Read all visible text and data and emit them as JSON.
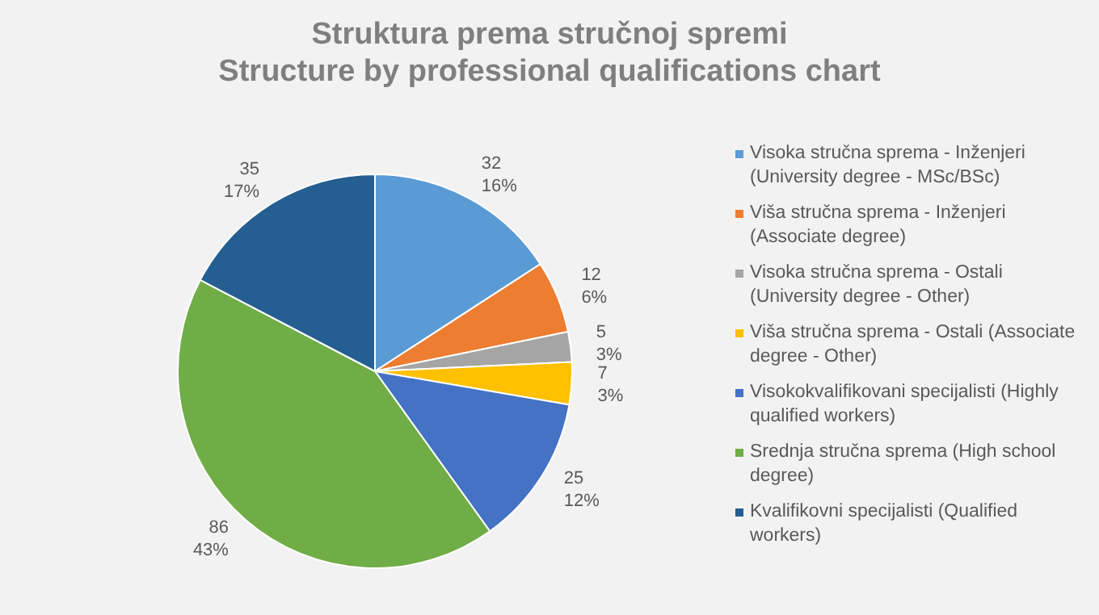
{
  "chart_data": {
    "type": "pie",
    "title": "Struktura prema stručnoj spremi",
    "subtitle": "Structure by professional qualifications chart",
    "categories": [
      "Visoka stručna sprema  - Inženjeri (University degree - MSc/BSc)",
      "Viša stručna sprema - Inženjeri (Associate degree)",
      "Visoka stručna sprema  - Ostali (University degree - Other)",
      "Viša stručna sprema - Ostali (Associate degree - Other)",
      "Visokokvalifikovani specijalisti (Highly qualified workers)",
      "Srednja stručna sprema (High school degree)",
      "Kvalifikovni specijalisti (Qualified workers)"
    ],
    "values": [
      32,
      12,
      5,
      7,
      25,
      86,
      35
    ],
    "value_labels": [
      "32\n16%",
      "12\n6%",
      "5\n3%",
      "7\n3%",
      "25\n12%",
      "86\n43%",
      "35\n17%"
    ],
    "colors": [
      "#5b9bd5",
      "#ed7d31",
      "#a5a5a5",
      "#ffc000",
      "#4472c4",
      "#70ad47",
      "#255e91"
    ],
    "legend": "right"
  }
}
